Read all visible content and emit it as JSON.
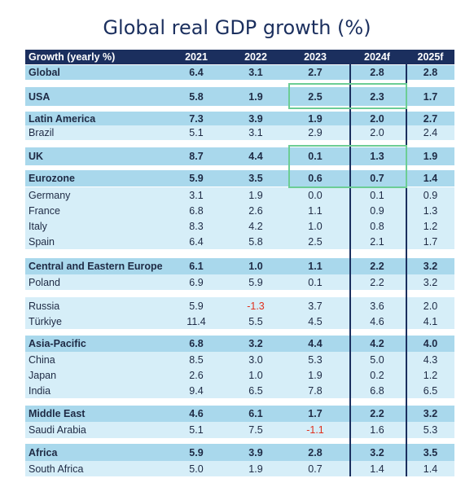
{
  "title": "Global real GDP growth (%)",
  "colors": {
    "header_bg": "#1b2f5e",
    "major_bg": "#a9d8ec",
    "minor_bg": "#d6eef8",
    "text": "#1e2a44",
    "negative": "#e0301e",
    "highlight": "#6ccd95"
  },
  "chart_data": {
    "type": "table",
    "title": "Global real GDP growth (%)",
    "header": [
      "Growth (yearly %)",
      "2021",
      "2022",
      "2023",
      "2024f",
      "2025f"
    ],
    "rows": [
      {
        "name": "Global",
        "values": [
          "6.4",
          "3.1",
          "2.7",
          "2.8",
          "2.8"
        ],
        "major": true
      },
      {
        "name": "USA",
        "values": [
          "5.8",
          "1.9",
          "2.5",
          "2.3",
          "1.7"
        ],
        "major": true
      },
      {
        "name": "Latin America",
        "values": [
          "7.3",
          "3.9",
          "1.9",
          "2.0",
          "2.7"
        ],
        "major": true
      },
      {
        "name": "Brazil",
        "values": [
          "5.1",
          "3.1",
          "2.9",
          "2.0",
          "2.4"
        ],
        "major": false
      },
      {
        "name": "UK",
        "values": [
          "8.7",
          "4.4",
          "0.1",
          "1.3",
          "1.9"
        ],
        "major": true
      },
      {
        "name": "Eurozone",
        "values": [
          "5.9",
          "3.5",
          "0.6",
          "0.7",
          "1.4"
        ],
        "major": true
      },
      {
        "name": "Germany",
        "values": [
          "3.1",
          "1.9",
          "0.0",
          "0.1",
          "0.9"
        ],
        "major": false
      },
      {
        "name": "France",
        "values": [
          "6.8",
          "2.6",
          "1.1",
          "0.9",
          "1.3"
        ],
        "major": false
      },
      {
        "name": "Italy",
        "values": [
          "8.3",
          "4.2",
          "1.0",
          "0.8",
          "1.2"
        ],
        "major": false
      },
      {
        "name": "Spain",
        "values": [
          "6.4",
          "5.8",
          "2.5",
          "2.1",
          "1.7"
        ],
        "major": false
      },
      {
        "name": "Central and Eastern Europe",
        "values": [
          "6.1",
          "1.0",
          "1.1",
          "2.2",
          "3.2"
        ],
        "major": true
      },
      {
        "name": "Poland",
        "values": [
          "6.9",
          "5.9",
          "0.1",
          "2.2",
          "3.2"
        ],
        "major": false
      },
      {
        "name": "Russia",
        "values": [
          "5.9",
          "-1.3",
          "3.7",
          "3.6",
          "2.0"
        ],
        "major": false
      },
      {
        "name": "Türkiye",
        "values": [
          "11.4",
          "5.5",
          "4.5",
          "4.6",
          "4.1"
        ],
        "major": false
      },
      {
        "name": "Asia-Pacific",
        "values": [
          "6.8",
          "3.2",
          "4.4",
          "4.2",
          "4.0"
        ],
        "major": true
      },
      {
        "name": "China",
        "values": [
          "8.5",
          "3.0",
          "5.3",
          "5.0",
          "4.3"
        ],
        "major": false
      },
      {
        "name": "Japan",
        "values": [
          "2.6",
          "1.0",
          "1.9",
          "0.2",
          "1.2"
        ],
        "major": false
      },
      {
        "name": "India",
        "values": [
          "9.4",
          "6.5",
          "7.8",
          "6.8",
          "6.5"
        ],
        "major": false
      },
      {
        "name": "Middle East",
        "values": [
          "4.6",
          "6.1",
          "1.7",
          "2.2",
          "3.2"
        ],
        "major": true
      },
      {
        "name": "Saudi Arabia",
        "values": [
          "5.1",
          "7.5",
          "-1.1",
          "1.6",
          "5.3"
        ],
        "major": false
      },
      {
        "name": "Africa",
        "values": [
          "5.9",
          "3.9",
          "2.8",
          "3.2",
          "3.5"
        ],
        "major": true
      },
      {
        "name": "South Africa",
        "values": [
          "5.0",
          "1.9",
          "0.7",
          "1.4",
          "1.4"
        ],
        "major": false
      }
    ]
  }
}
